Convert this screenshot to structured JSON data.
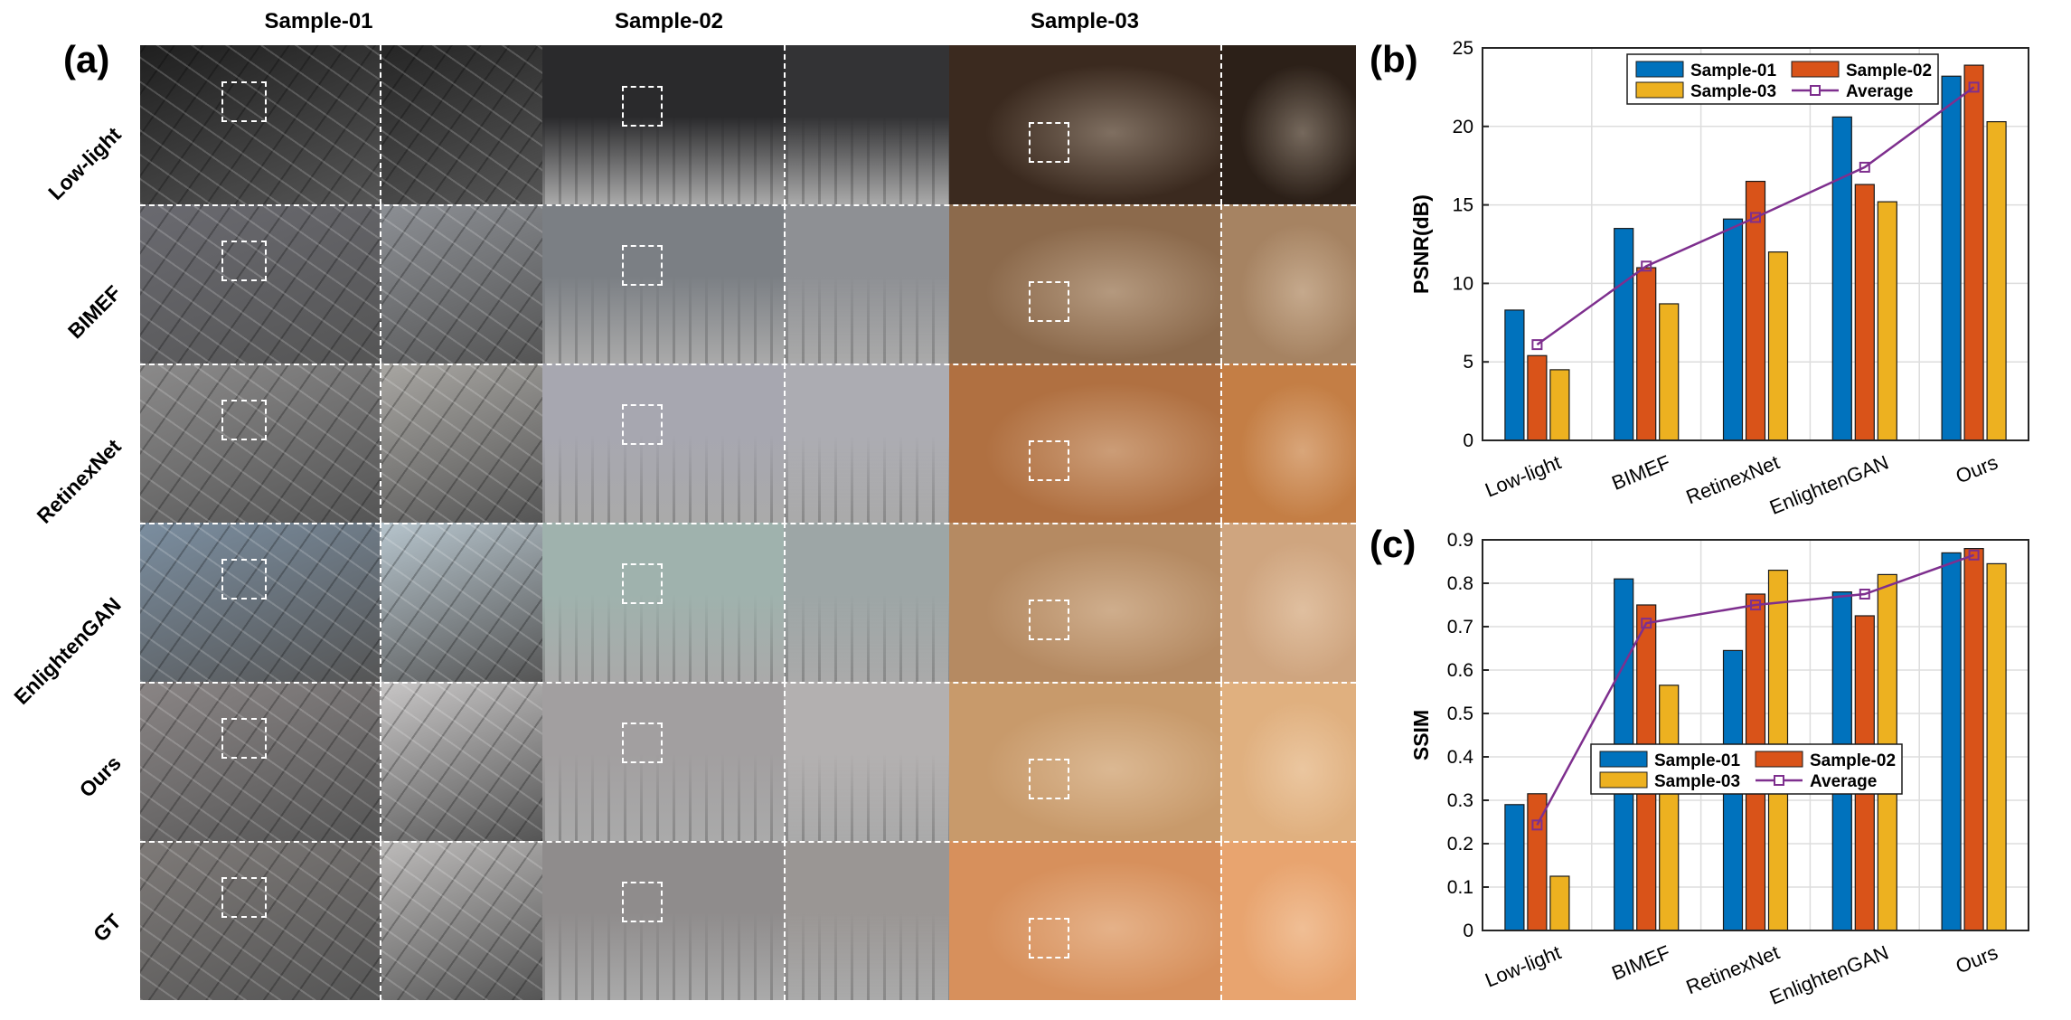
{
  "figure": {
    "column_headers": [
      "Sample-01",
      "Sample-02",
      "Sample-03"
    ],
    "row_labels": [
      "Low-light",
      "BIMEF",
      "RetinexNet",
      "EnlightenGAN",
      "Ours",
      "GT"
    ],
    "panel_letters": {
      "a": "(a)",
      "b": "(b)",
      "c": "(c)"
    }
  },
  "colors": {
    "sample01": "#0072BD",
    "sample02": "#D95319",
    "sample03": "#EDB120",
    "average": "#7E2F8E",
    "grid": "#dddddd",
    "axis": "#262626"
  },
  "chart_data": [
    {
      "type": "bar",
      "panel": "(b)",
      "categories": [
        "Low-light",
        "BIMEF",
        "RetinexNet",
        "EnlightenGAN",
        "Ours"
      ],
      "series": [
        {
          "name": "Sample-01",
          "values": [
            8.3,
            13.5,
            14.1,
            20.6,
            23.2
          ]
        },
        {
          "name": "Sample-02",
          "values": [
            5.4,
            11.0,
            16.5,
            16.3,
            23.9
          ]
        },
        {
          "name": "Sample-03",
          "values": [
            4.5,
            8.7,
            12.0,
            15.2,
            20.3
          ]
        }
      ],
      "line_series": {
        "name": "Average",
        "values": [
          6.1,
          11.1,
          14.2,
          17.4,
          22.5
        ]
      },
      "ylabel": "PSNR(dB)",
      "xlabel": "",
      "ylim": [
        0,
        25
      ],
      "yticks": [
        0,
        5,
        10,
        15,
        20,
        25
      ],
      "grid": true,
      "legend_position": "top"
    },
    {
      "type": "bar",
      "panel": "(c)",
      "categories": [
        "Low-light",
        "BIMEF",
        "RetinexNet",
        "EnlightenGAN",
        "Ours"
      ],
      "series": [
        {
          "name": "Sample-01",
          "values": [
            0.29,
            0.81,
            0.645,
            0.78,
            0.87
          ]
        },
        {
          "name": "Sample-02",
          "values": [
            0.315,
            0.75,
            0.775,
            0.725,
            0.88
          ]
        },
        {
          "name": "Sample-03",
          "values": [
            0.125,
            0.565,
            0.83,
            0.82,
            0.845
          ]
        }
      ],
      "line_series": {
        "name": "Average",
        "values": [
          0.243,
          0.708,
          0.75,
          0.775,
          0.865
        ]
      },
      "ylabel": "SSIM",
      "xlabel": "",
      "ylim": [
        0,
        0.9
      ],
      "yticks": [
        0,
        0.1,
        0.2,
        0.3,
        0.4,
        0.5,
        0.6,
        0.7,
        0.8,
        0.9
      ],
      "grid": true,
      "legend_position": "center"
    }
  ]
}
